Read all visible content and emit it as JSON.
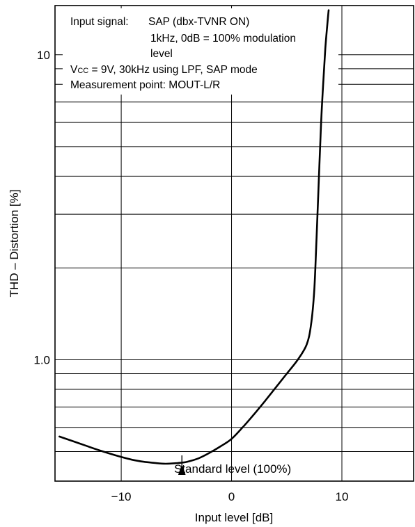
{
  "chart_data": {
    "type": "line",
    "xlabel": "Input level [dB]",
    "ylabel": "THD – Distortion [%]",
    "xlim": [
      -16,
      16.5
    ],
    "ylim": [
      0.4,
      14.5
    ],
    "yscale": "log",
    "grid": true,
    "x_ticks": [
      {
        "value": -10,
        "label": "−10"
      },
      {
        "value": 0,
        "label": "0"
      },
      {
        "value": 10,
        "label": "10"
      }
    ],
    "y_ticks": [
      {
        "value": 1.0,
        "label": "1.0"
      },
      {
        "value": 10,
        "label": "10"
      }
    ],
    "series": [
      {
        "x": [
          -15.6,
          -14,
          -12,
          -10,
          -9,
          -8,
          -7,
          -6,
          -5,
          -4.5,
          -4,
          -3,
          -2,
          -1,
          0,
          1,
          2,
          3,
          4,
          5,
          6,
          6.8,
          7.2,
          7.5,
          7.7,
          7.9,
          8.1,
          8.3,
          8.5,
          8.7,
          8.8
        ],
        "y": [
          0.56,
          0.535,
          0.505,
          0.48,
          0.47,
          0.463,
          0.459,
          0.456,
          0.458,
          0.46,
          0.463,
          0.475,
          0.495,
          0.52,
          0.55,
          0.6,
          0.66,
          0.73,
          0.81,
          0.9,
          1.0,
          1.12,
          1.3,
          1.7,
          2.5,
          3.8,
          5.8,
          8.0,
          10.5,
          12.8,
          14.0
        ]
      }
    ],
    "annotations": {
      "input_signal_label": "Input signal:",
      "input_signal_value": "SAP (dbx-TVNR ON)",
      "signal_detail_1": "1kHz, 0dB = 100% modulation",
      "signal_detail_2": "level",
      "vcc_prefix": "V",
      "vcc_subscript": "CC",
      "vcc_rest": " = 9V, 30kHz using LPF, SAP mode",
      "measurement_point": "Measurement point: MOUT-L/R",
      "standard_level": "Standard level (100%)",
      "standard_level_x": -4.5
    }
  }
}
